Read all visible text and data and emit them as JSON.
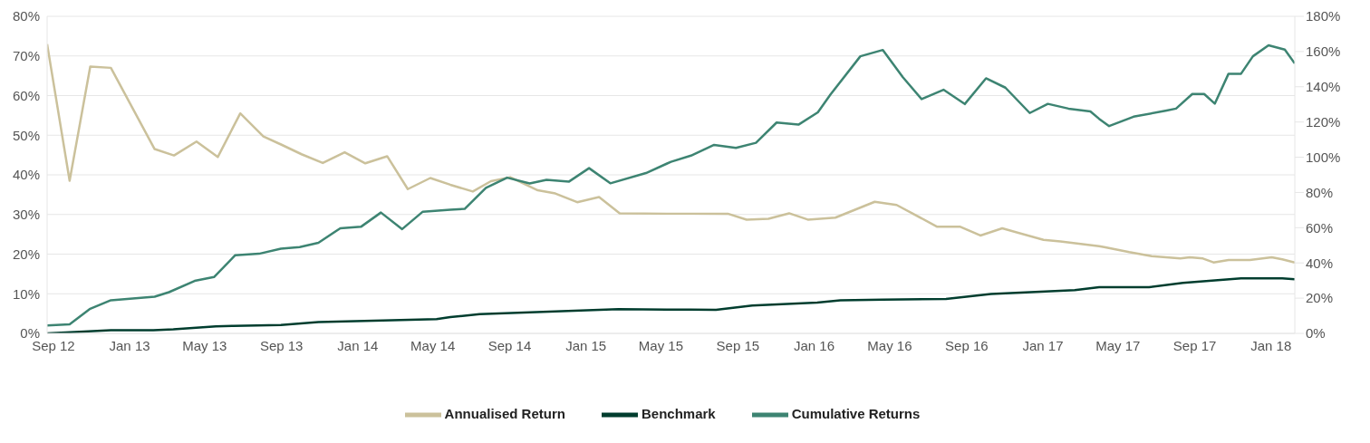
{
  "chart_data": {
    "type": "line",
    "xlim": [
      "2012-08-22",
      "2018-02-08"
    ],
    "xticks": [
      {
        "value": "2012-09-01",
        "label": "Sep 12"
      },
      {
        "value": "2013-01-01",
        "label": "Jan 13"
      },
      {
        "value": "2013-05-01",
        "label": "May 13"
      },
      {
        "value": "2013-09-01",
        "label": "Sep 13"
      },
      {
        "value": "2014-01-01",
        "label": "Jan 14"
      },
      {
        "value": "2014-05-01",
        "label": "May 14"
      },
      {
        "value": "2014-09-01",
        "label": "Sep 14"
      },
      {
        "value": "2015-01-01",
        "label": "Jan 15"
      },
      {
        "value": "2015-05-01",
        "label": "May 15"
      },
      {
        "value": "2015-09-01",
        "label": "Sep 15"
      },
      {
        "value": "2016-01-01",
        "label": "Jan 16"
      },
      {
        "value": "2016-05-01",
        "label": "May 16"
      },
      {
        "value": "2016-09-01",
        "label": "Sep 16"
      },
      {
        "value": "2017-01-01",
        "label": "Jan 17"
      },
      {
        "value": "2017-05-01",
        "label": "May 17"
      },
      {
        "value": "2017-09-01",
        "label": "Sep 17"
      },
      {
        "value": "2018-01-01",
        "label": "Jan 18"
      }
    ],
    "ylim": [
      0,
      80
    ],
    "yticks": [
      {
        "value": 0,
        "label": "0%"
      },
      {
        "value": 10,
        "label": "10%"
      },
      {
        "value": 20,
        "label": "20%"
      },
      {
        "value": 30,
        "label": "30%"
      },
      {
        "value": 40,
        "label": "40%"
      },
      {
        "value": 50,
        "label": "50%"
      },
      {
        "value": 60,
        "label": "60%"
      },
      {
        "value": 70,
        "label": "70%"
      },
      {
        "value": 80,
        "label": "80%"
      }
    ],
    "y2lim": [
      0,
      180
    ],
    "y2ticks": [
      {
        "value": 0,
        "label": "0%"
      },
      {
        "value": 20,
        "label": "20%"
      },
      {
        "value": 40,
        "label": "40%"
      },
      {
        "value": 60,
        "label": "60%"
      },
      {
        "value": 80,
        "label": "80%"
      },
      {
        "value": 100,
        "label": "100%"
      },
      {
        "value": 120,
        "label": "120%"
      },
      {
        "value": 140,
        "label": "140%"
      },
      {
        "value": 160,
        "label": "160%"
      },
      {
        "value": 180,
        "label": "180%"
      }
    ],
    "grid": "y",
    "legend": "bottom",
    "marker": "none",
    "line_style": "solid",
    "series": [
      {
        "name": "Annualised Return",
        "color": "#cbc19b",
        "x": [
          "2012-08-22",
          "2012-09-27",
          "2012-10-30",
          "2012-12-02",
          "2013-02-10",
          "2013-03-13",
          "2013-04-18",
          "2013-05-22",
          "2013-06-27",
          "2013-08-03",
          "2013-09-01",
          "2013-10-03",
          "2013-11-06",
          "2013-12-11",
          "2014-01-13",
          "2014-02-17",
          "2014-03-22",
          "2014-04-27",
          "2014-05-29",
          "2014-07-04",
          "2014-08-02",
          "2014-09-02",
          "2014-10-16",
          "2014-11-13",
          "2014-12-18",
          "2015-01-22",
          "2015-02-24",
          "2015-05-10",
          "2015-08-16",
          "2015-09-15",
          "2015-10-20",
          "2015-11-22",
          "2015-12-22",
          "2016-02-04",
          "2016-04-07",
          "2016-05-12",
          "2016-07-16",
          "2016-08-22",
          "2016-09-23",
          "2016-10-28",
          "2017-01-02",
          "2017-01-29",
          "2017-04-01",
          "2017-04-11",
          "2017-05-19",
          "2017-06-24",
          "2017-08-09",
          "2017-08-24",
          "2017-09-14",
          "2017-10-01",
          "2017-10-25",
          "2017-11-28",
          "2018-01-02",
          "2018-01-19",
          "2018-02-08"
        ],
        "values": [
          73.0,
          38.5,
          67.3,
          67.0,
          46.5,
          44.9,
          48.4,
          44.5,
          55.5,
          49.7,
          47.6,
          45.2,
          43.0,
          45.7,
          42.9,
          44.7,
          36.4,
          39.2,
          37.5,
          35.8,
          38.4,
          39.4,
          36.1,
          35.3,
          33.1,
          34.4,
          30.3,
          30.2,
          30.2,
          28.7,
          28.9,
          30.3,
          28.7,
          29.2,
          33.2,
          32.4,
          26.9,
          26.9,
          24.7,
          26.5,
          23.6,
          23.2,
          22.0,
          21.7,
          20.5,
          19.5,
          18.9,
          19.2,
          18.9,
          17.9,
          18.5,
          18.5,
          19.2,
          18.7,
          17.9
        ]
      },
      {
        "name": "Cumulative Returns",
        "color": "#3d8472",
        "axis": "y2",
        "x": [
          "2012-08-22",
          "2012-09-27",
          "2012-10-29",
          "2012-12-02",
          "2013-02-10",
          "2013-03-05",
          "2013-04-15",
          "2013-05-16",
          "2013-06-19",
          "2013-07-27",
          "2013-08-31",
          "2013-09-30",
          "2013-10-30",
          "2013-12-04",
          "2014-01-06",
          "2014-02-07",
          "2014-03-13",
          "2014-04-15",
          "2014-05-29",
          "2014-06-21",
          "2014-07-25",
          "2014-08-28",
          "2014-10-03",
          "2014-10-30",
          "2014-12-05",
          "2015-01-06",
          "2015-02-09",
          "2015-04-07",
          "2015-05-10",
          "2015-05-17",
          "2015-06-18",
          "2015-07-25",
          "2015-08-29",
          "2015-09-30",
          "2015-11-02",
          "2015-12-07",
          "2016-01-07",
          "2016-01-27",
          "2016-03-15",
          "2016-04-20",
          "2016-05-22",
          "2016-06-21",
          "2016-07-26",
          "2016-08-29",
          "2016-10-02",
          "2016-11-02",
          "2016-12-11",
          "2017-01-09",
          "2017-02-11",
          "2017-03-18",
          "2017-04-01",
          "2017-04-17",
          "2017-05-26",
          "2017-07-18",
          "2017-08-02",
          "2017-08-28",
          "2017-09-16",
          "2017-10-03",
          "2017-10-25",
          "2017-11-14",
          "2017-12-03",
          "2017-12-28",
          "2018-01-23",
          "2018-02-08"
        ],
        "values": [
          4.5,
          5.1,
          13.8,
          18.8,
          20.8,
          23.4,
          29.8,
          32.0,
          44.4,
          45.2,
          48.1,
          49.0,
          51.4,
          59.7,
          60.5,
          68.6,
          59.2,
          69.1,
          70.2,
          70.7,
          82.6,
          88.4,
          85.1,
          87.2,
          86.2,
          93.8,
          85.2,
          91.0,
          96.3,
          97.4,
          100.9,
          107.0,
          105.3,
          108.2,
          119.7,
          118.5,
          125.5,
          135.5,
          157.3,
          160.9,
          145.4,
          133.0,
          138.3,
          130.2,
          144.8,
          139.5,
          125.1,
          130.3,
          127.6,
          126.0,
          121.8,
          117.7,
          123.0,
          126.5,
          127.6,
          135.9,
          135.9,
          130.4,
          147.4,
          147.4,
          157.3,
          163.5,
          161.1,
          153.2
        ]
      },
      {
        "name": "Benchmark",
        "color": "#003d2e",
        "axis": "y2",
        "x": [
          "2012-08-22",
          "2012-12-02",
          "2013-02-08",
          "2013-03-12",
          "2013-05-19",
          "2013-06-16",
          "2013-08-31",
          "2013-10-30",
          "2014-02-10",
          "2014-05-07",
          "2014-05-29",
          "2014-07-15",
          "2015-02-22",
          "2015-05-10",
          "2015-07-28",
          "2015-09-24",
          "2016-01-06",
          "2016-02-12",
          "2016-04-20",
          "2016-07-30",
          "2016-10-10",
          "2017-02-21",
          "2017-04-01",
          "2017-04-16",
          "2017-06-20",
          "2017-08-13",
          "2017-11-14",
          "2018-01-19",
          "2018-02-08"
        ],
        "values": [
          0,
          1.8,
          1.8,
          2.3,
          4.0,
          4.3,
          4.8,
          6.4,
          7.3,
          8.1,
          9.2,
          10.9,
          13.8,
          13.5,
          13.4,
          15.8,
          17.5,
          18.8,
          19.1,
          19.6,
          22.4,
          24.6,
          26.2,
          26.2,
          26.2,
          28.7,
          31.2,
          31.2,
          30.7
        ]
      }
    ]
  }
}
